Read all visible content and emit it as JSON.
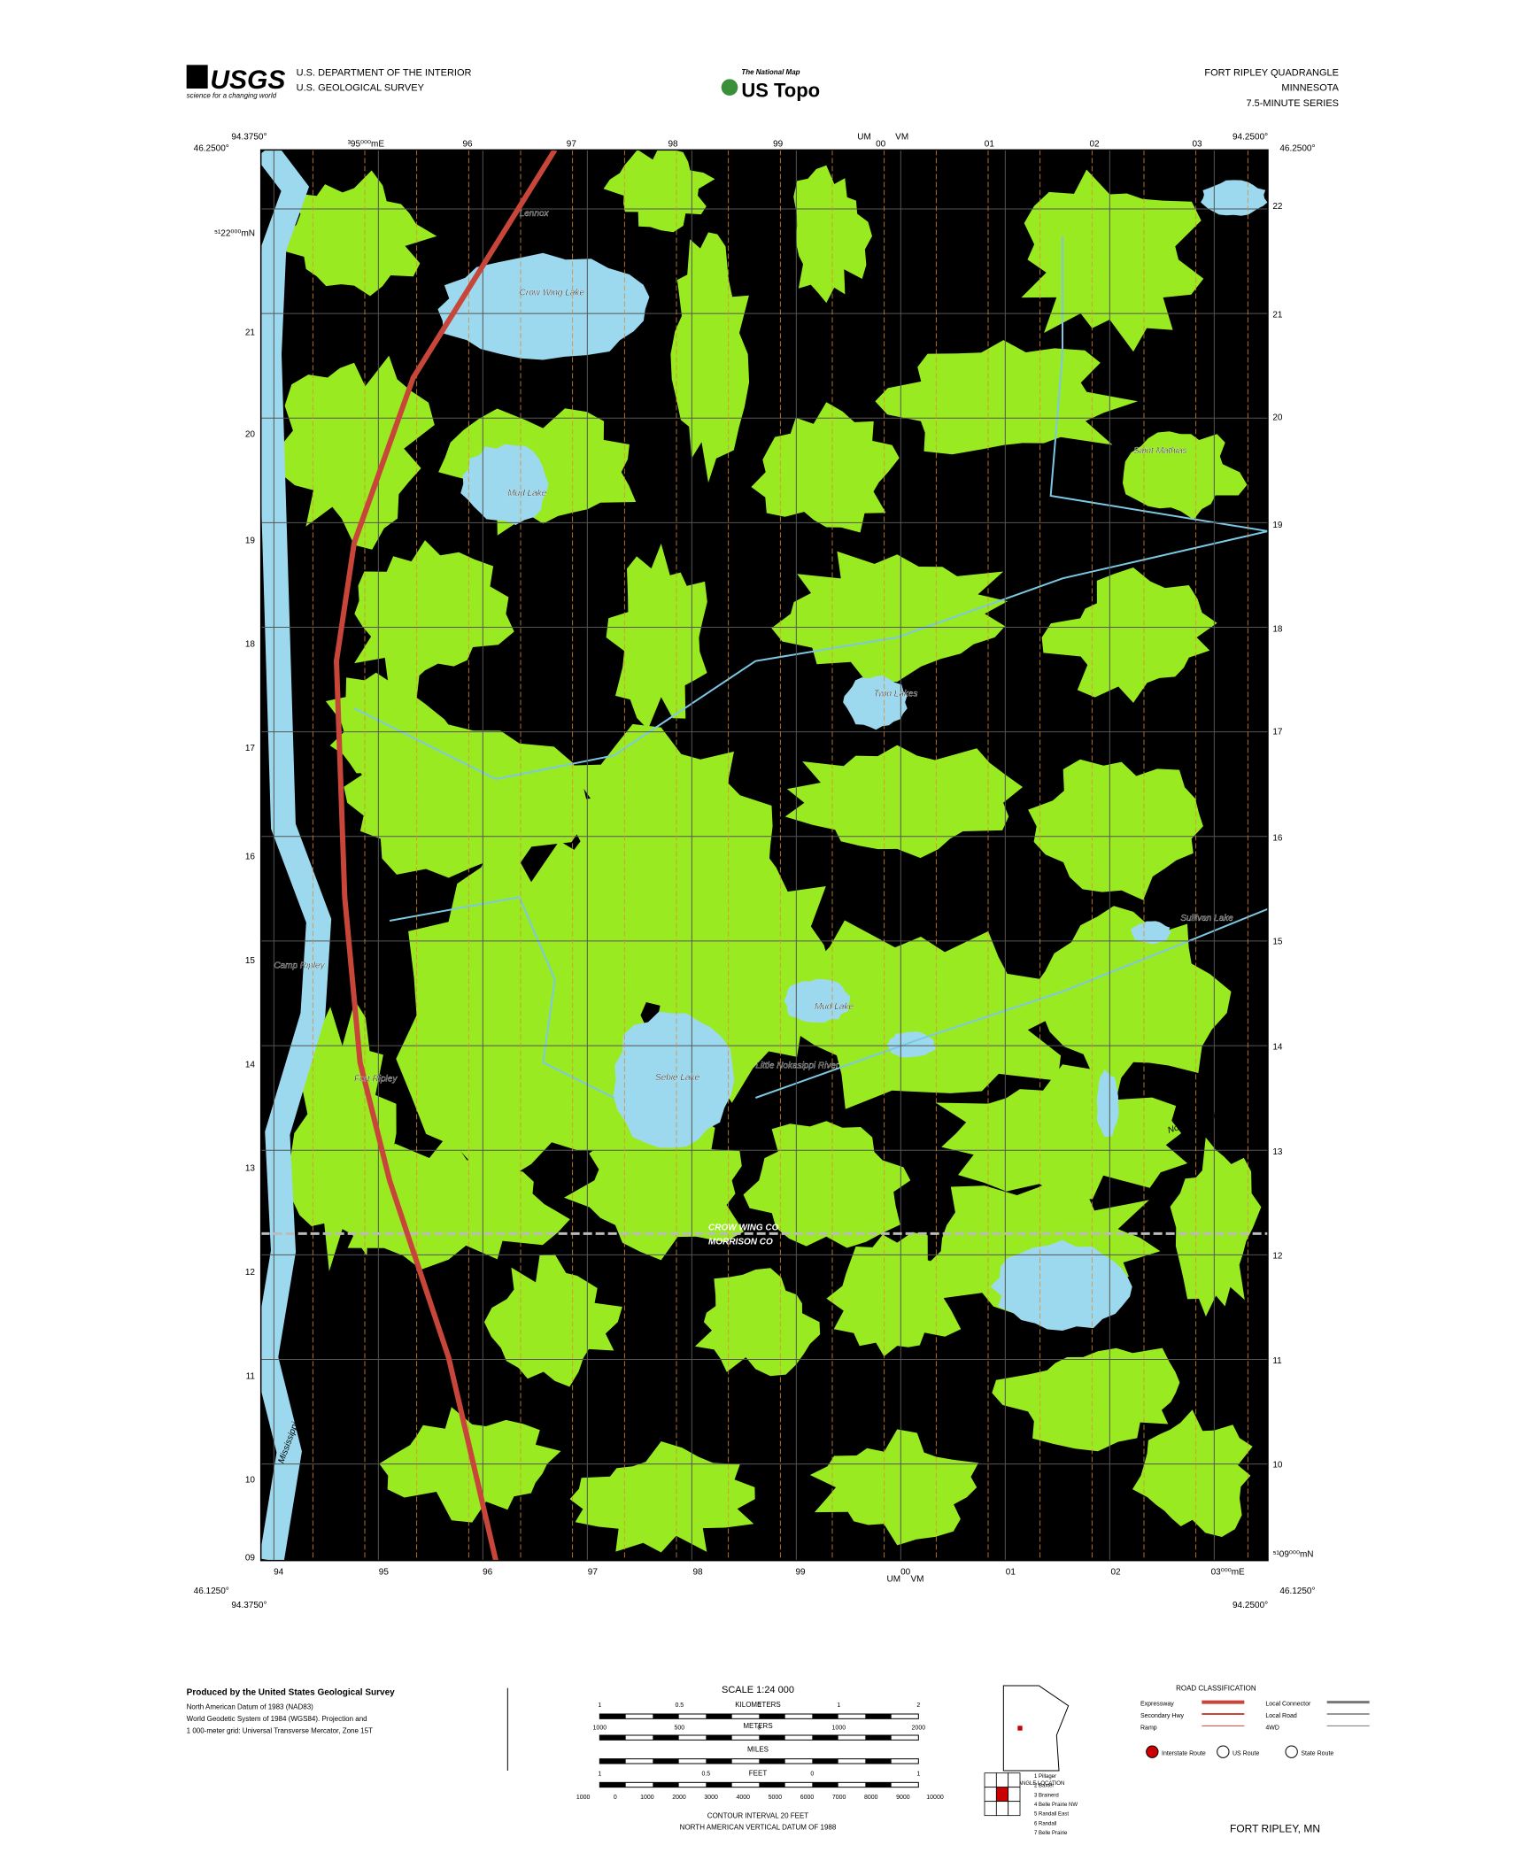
{
  "header": {
    "agency_logo": "USGS",
    "agency_tagline": "science for a changing world",
    "agency_lines": [
      "U.S. DEPARTMENT OF THE INTERIOR",
      "U.S. GEOLOGICAL SURVEY"
    ],
    "center_small": "The National Map",
    "center_logo": "US Topo",
    "title_lines": [
      "FORT RIPLEY QUADRANGLE",
      "MINNESOTA",
      "7.5-MINUTE SERIES"
    ]
  },
  "corners": {
    "top_left": [
      "94.3750°",
      "46.2500°"
    ],
    "top_right": [
      "94.2500°",
      "46.2500°"
    ],
    "bottom_left": [
      "46.1250°",
      "94.3750°"
    ],
    "bottom_right": [
      "46.1250°",
      "94.2500°"
    ]
  },
  "grid_labels": {
    "top": [
      "³95⁰⁰⁰mE",
      "96",
      "97",
      "98",
      "99",
      "UM",
      "VM",
      "00",
      "01",
      "02",
      "03"
    ],
    "bottom": [
      "94",
      "95",
      "96",
      "97",
      "98",
      "99",
      "UM",
      "00",
      "VM",
      "01",
      "02",
      "03⁰⁰⁰mE"
    ],
    "left": [
      "⁵¹22⁰⁰⁰mN",
      "21",
      "20",
      "19",
      "18",
      "17",
      "16",
      "15",
      "14",
      "13",
      "12",
      "11",
      "10",
      "09"
    ],
    "right": [
      "22",
      "21",
      "20",
      "19",
      "18",
      "17",
      "16",
      "15",
      "14",
      "13",
      "12",
      "11",
      "10",
      "⁵¹09⁰⁰⁰mN"
    ]
  },
  "place_names": [
    "Lennox",
    "Crow Wing Lake",
    "Mud Lake",
    "Saint Mathias",
    "Twin Lakes",
    "Camp Ripley",
    "Fort Ripley",
    "Sebie Lake",
    "Mud Lake",
    "Little Nokasippi River",
    "Sullivan Lake",
    "CROW WING CO",
    "MORRISON CO",
    "Nokasippi River",
    "Mississippi River"
  ],
  "footer": {
    "producer": "Produced by the United States Geological Survey",
    "datum_lines": [
      "North American Datum of 1983 (NAD83)",
      "World Geodetic System of 1984 (WGS84). Projection and",
      "1 000-meter grid: Universal Transverse Mercator, Zone 15T"
    ],
    "scale_title": "SCALE 1:24 000",
    "scale_units": [
      "KILOMETERS",
      "METERS",
      "MILES",
      "FEET"
    ],
    "km_ticks": [
      "1",
      "0.5",
      "0",
      "1",
      "2"
    ],
    "m_ticks": [
      "1000",
      "500",
      "0",
      "1000",
      "2000"
    ],
    "mi_ticks": [
      "1",
      "0.5",
      "0",
      "1"
    ],
    "ft_ticks": [
      "1000",
      "0",
      "1000",
      "2000",
      "3000",
      "4000",
      "5000",
      "6000",
      "7000",
      "8000",
      "9000",
      "10000"
    ],
    "contour_lines": [
      "CONTOUR INTERVAL 20 FEET",
      "NORTH AMERICAN VERTICAL DATUM OF 1988"
    ],
    "road_title": "ROAD CLASSIFICATION",
    "road_classes": [
      "Expressway",
      "Secondary Hwy",
      "Ramp",
      "Local Connector",
      "Local Road",
      "4WD"
    ],
    "route_types": [
      "Interstate Route",
      "US Route",
      "State Route"
    ],
    "state_caption": "QUADRANGLE LOCATION",
    "adjoining": [
      "1 Pillager",
      "2 Baxter",
      "3 Brainerd",
      "4 Belle Prairie NW",
      "5 Randall East",
      "6 Randall",
      "7 Belle Prairie"
    ],
    "quad_name": "FORT RIPLEY, MN"
  }
}
